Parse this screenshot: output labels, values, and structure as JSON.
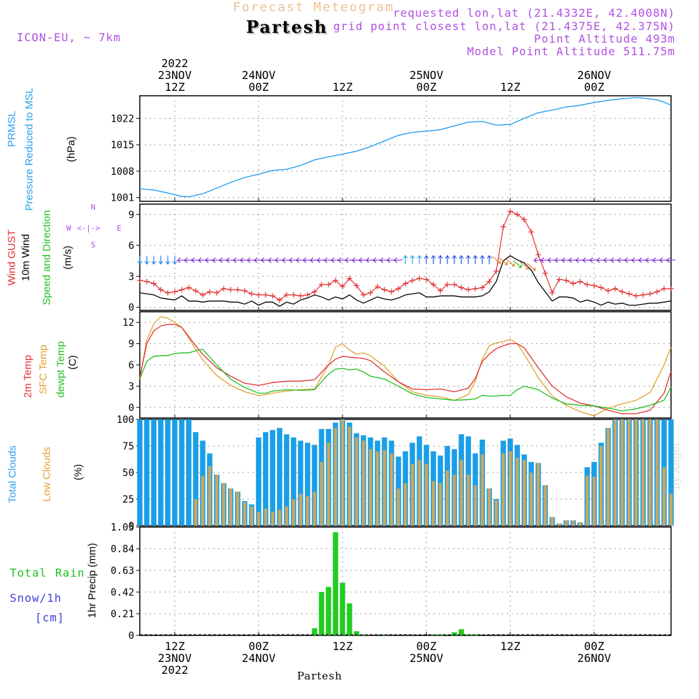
{
  "header": {
    "title": "Forecast Meteogram",
    "station": "Partesh",
    "model": "ICON-EU, ~ 7km",
    "requested": "requested lon,lat (21.4332E, 42.4008N)",
    "closest": "grid point closest lon,lat (21.4375E, 42.375N)",
    "altitude": "Point Altitude 493m",
    "model_altitude": "Model Point Altitude 511.75m",
    "watermark": "by Angel",
    "footer_station": "Partesh",
    "colors": {
      "title": "#f0c090",
      "purple": "#b050e0",
      "blue": "#2aa0f0",
      "red": "#e03030",
      "orange": "#e0a030",
      "green": "#20c020",
      "black": "#000000"
    }
  },
  "time_axis": {
    "top_ticks": [
      {
        "t": 6,
        "lines": [
          "2022",
          "23NOV",
          "12Z"
        ]
      },
      {
        "t": 18,
        "lines": [
          "24NOV",
          "00Z"
        ]
      },
      {
        "t": 30,
        "lines": [
          "12Z"
        ]
      },
      {
        "t": 42,
        "lines": [
          "25NOV",
          "00Z"
        ]
      },
      {
        "t": 54,
        "lines": [
          "12Z"
        ]
      },
      {
        "t": 66,
        "lines": [
          "26NOV",
          "00Z"
        ]
      }
    ],
    "bottom_ticks": [
      {
        "t": 6,
        "lines": [
          "12Z",
          "23NOV",
          "2022"
        ]
      },
      {
        "t": 18,
        "lines": [
          "00Z",
          "24NOV"
        ]
      },
      {
        "t": 30,
        "lines": [
          "12Z"
        ]
      },
      {
        "t": 42,
        "lines": [
          "00Z",
          "25NOV"
        ]
      },
      {
        "t": 54,
        "lines": [
          "12Z"
        ]
      },
      {
        "t": 66,
        "lines": [
          "00Z",
          "26NOV"
        ]
      }
    ],
    "t_start": 1,
    "t_end": 77,
    "unit": "hours after 2022-11-23 06Z"
  },
  "labels": {
    "pressure": [
      "PRMSL",
      "Pressure Reduced to MSL",
      "(hPa)"
    ],
    "wind": [
      "Wind GUST",
      "10m Wind",
      "Speed and Direction",
      "(m/s)"
    ],
    "compass": {
      "n": "N",
      "s": "S",
      "w": "W",
      "e": "E"
    },
    "temp": [
      "2m Temp",
      "SFC Temp",
      "dewpt Temp",
      "(C)"
    ],
    "clouds": [
      "Total Clouds",
      "Low Clouds",
      "(%)"
    ],
    "precip": [
      "Total",
      "Rain",
      "Snow/1h",
      "[cm]",
      "1hr Precip (mm)"
    ]
  },
  "chart_data": [
    {
      "type": "line",
      "name": "pressure",
      "ylabel": "(hPa)",
      "ylim": [
        1000,
        1028
      ],
      "yticks": [
        1001,
        1008,
        1015,
        1022
      ],
      "x": [
        1,
        3,
        5,
        7,
        8,
        10,
        12,
        14,
        16,
        18,
        20,
        22,
        24,
        26,
        28,
        30,
        32,
        34,
        36,
        38,
        40,
        42,
        44,
        46,
        48,
        50,
        52,
        54,
        56,
        58,
        60,
        62,
        64,
        66,
        68,
        70,
        72,
        73,
        75,
        76,
        77
      ],
      "series": [
        {
          "values": [
            1003.3,
            1003,
            1002.2,
            1001.3,
            1001.2,
            1002,
            1003.5,
            1005,
            1006.3,
            1007.2,
            1008.2,
            1008.5,
            1009.5,
            1011,
            1011.8,
            1012.5,
            1013.3,
            1014.5,
            1016,
            1017.5,
            1018.3,
            1018.6,
            1019,
            1020,
            1021,
            1021.2,
            1020.2,
            1020.4,
            1022,
            1023.5,
            1024.2,
            1025,
            1025.5,
            1026.2,
            1026.8,
            1027.2,
            1027.5,
            1027.4,
            1026.9,
            1026.3,
            1025.5
          ]
        }
      ],
      "grid": true
    },
    {
      "type": "line",
      "name": "wind",
      "ylabel": "(m/s)",
      "ylim": [
        -0.3,
        10
      ],
      "yticks": [
        0,
        3,
        6,
        9
      ],
      "x": [
        1,
        2,
        3,
        4,
        5,
        6,
        7,
        8,
        9,
        10,
        11,
        12,
        13,
        14,
        15,
        16,
        17,
        18,
        19,
        20,
        21,
        22,
        23,
        24,
        25,
        26,
        27,
        28,
        29,
        30,
        31,
        32,
        33,
        34,
        35,
        36,
        37,
        38,
        39,
        40,
        41,
        42,
        43,
        44,
        45,
        46,
        47,
        48,
        49,
        50,
        51,
        52,
        53,
        54,
        55,
        56,
        57,
        58,
        59,
        60,
        61,
        62,
        63,
        64,
        65,
        66,
        67,
        68,
        69,
        70,
        71,
        72,
        73,
        74,
        75,
        76,
        77
      ],
      "series": [
        {
          "name": "Wind GUST",
          "values": [
            2.6,
            2.5,
            2.3,
            1.7,
            1.4,
            1.5,
            1.7,
            1.9,
            1.6,
            1.2,
            1.5,
            1.4,
            1.8,
            1.7,
            1.7,
            1.6,
            1.3,
            1.2,
            1.2,
            1.1,
            0.7,
            1.2,
            1.2,
            1.1,
            1.2,
            1.5,
            2.2,
            2.2,
            2.6,
            2.0,
            2.8,
            2.1,
            1.2,
            1.4,
            2.0,
            1.7,
            1.5,
            1.8,
            2.3,
            2.6,
            2.8,
            2.7,
            2.2,
            1.6,
            2.2,
            2.2,
            1.9,
            1.7,
            1.8,
            1.9,
            2.5,
            3.5,
            7.8,
            9.3,
            9.0,
            8.5,
            7.3,
            5.1,
            3.3,
            1.4,
            2.7,
            2.6,
            2.3,
            2.5,
            2.2,
            2.1,
            1.9,
            1.6,
            1.8,
            1.5,
            1.3,
            1.1,
            1.2,
            1.3,
            1.5,
            1.8,
            1.8
          ]
        },
        {
          "name": "10m Wind",
          "values": [
            1.4,
            1.3,
            1.2,
            0.9,
            0.8,
            0.7,
            1.1,
            0.6,
            0.6,
            0.5,
            0.6,
            0.6,
            0.6,
            0.5,
            0.5,
            0.3,
            0.6,
            0.2,
            0.5,
            0.5,
            0.1,
            0.5,
            0.3,
            0.7,
            0.9,
            1.2,
            1.0,
            0.7,
            1.0,
            0.8,
            1.2,
            0.7,
            0.4,
            0.7,
            1.0,
            0.8,
            0.7,
            0.9,
            1.2,
            1.3,
            1.4,
            1.0,
            1.0,
            1.1,
            1.1,
            1.1,
            1.0,
            1.0,
            1.0,
            1.1,
            1.5,
            2.5,
            4.5,
            5.0,
            4.6,
            4.3,
            3.6,
            2.4,
            1.5,
            0.6,
            1.0,
            1.0,
            0.9,
            0.5,
            0.7,
            0.5,
            0.2,
            0.5,
            0.3,
            0.4,
            0.2,
            0.2,
            0.3,
            0.4,
            0.4,
            0.5,
            0.6
          ]
        }
      ],
      "arrows": {
        "y": 4.6,
        "color_green": "#20c020",
        "note": "wind direction barbs, mostly blowing from the east"
      },
      "grid": true
    },
    {
      "type": "line",
      "name": "temperature",
      "ylabel": "(C)",
      "ylim": [
        -1.5,
        13.5
      ],
      "yticks": [
        0,
        3,
        6,
        9,
        12
      ],
      "x": [
        1,
        2,
        3,
        4,
        5,
        6,
        7,
        8,
        9,
        10,
        12,
        14,
        16,
        18,
        19,
        20,
        22,
        24,
        26,
        28,
        29,
        30,
        31,
        32,
        33,
        34,
        36,
        38,
        40,
        42,
        44,
        46,
        48,
        49,
        50,
        51,
        52,
        53,
        54,
        55,
        56,
        58,
        60,
        62,
        64,
        66,
        68,
        70,
        72,
        74,
        76,
        77
      ],
      "series": [
        {
          "name": "2m Temp",
          "values": [
            4.2,
            9.0,
            10.8,
            11.5,
            11.7,
            11.7,
            11.3,
            10.0,
            8.7,
            7.5,
            5.6,
            4.4,
            3.4,
            3.1,
            3.3,
            3.5,
            3.7,
            3.7,
            3.9,
            6.0,
            6.8,
            7.2,
            7.1,
            7.0,
            6.9,
            6.6,
            5.0,
            3.6,
            2.6,
            2.5,
            2.6,
            2.2,
            2.7,
            4.1,
            6.5,
            7.5,
            8.3,
            8.7,
            9.0,
            9.0,
            8.4,
            5.6,
            3.0,
            1.5,
            0.6,
            0.2,
            -0.4,
            -0.9,
            -0.9,
            -0.4,
            2.0,
            5.1
          ]
        },
        {
          "name": "SFC Temp",
          "values": [
            4.0,
            9.5,
            11.8,
            12.8,
            12.6,
            12.0,
            11.3,
            9.8,
            8.2,
            6.7,
            4.5,
            3.1,
            2.2,
            1.7,
            1.8,
            2.0,
            2.3,
            2.5,
            2.6,
            6.0,
            8.5,
            9.0,
            8.1,
            7.5,
            7.7,
            7.3,
            5.8,
            3.6,
            2.2,
            1.7,
            1.5,
            1.0,
            1.8,
            3.7,
            6.8,
            8.7,
            9.1,
            9.3,
            9.6,
            9.0,
            7.5,
            4.2,
            1.6,
            0.3,
            -0.6,
            -1.2,
            -0.1,
            0.5,
            1.0,
            2.1,
            6.0,
            8.5
          ]
        },
        {
          "name": "dewpt Temp",
          "values": [
            4.0,
            6.5,
            7.2,
            7.3,
            7.3,
            7.6,
            7.7,
            7.7,
            8.0,
            8.2,
            6.0,
            4.0,
            2.8,
            2.0,
            2.0,
            2.3,
            2.5,
            2.4,
            2.5,
            4.7,
            5.4,
            5.5,
            5.3,
            5.4,
            5.0,
            4.4,
            4.0,
            3.0,
            1.9,
            1.4,
            1.2,
            1.0,
            1.1,
            1.2,
            1.7,
            1.6,
            1.6,
            1.7,
            1.7,
            2.5,
            3.0,
            2.5,
            1.3,
            0.5,
            0.3,
            0.2,
            -0.1,
            -0.5,
            -0.2,
            0.3,
            1.0,
            2.9
          ]
        }
      ],
      "grid": true
    },
    {
      "type": "bar",
      "name": "clouds",
      "ylabel": "(%)",
      "ylim": [
        0,
        100
      ],
      "yticks": [
        0,
        25,
        50,
        75,
        100
      ],
      "x": [
        1,
        2,
        3,
        4,
        5,
        6,
        7,
        8,
        9,
        10,
        11,
        12,
        13,
        14,
        15,
        16,
        17,
        18,
        19,
        20,
        21,
        22,
        23,
        24,
        25,
        26,
        27,
        28,
        29,
        30,
        31,
        32,
        33,
        34,
        35,
        36,
        37,
        38,
        39,
        40,
        41,
        42,
        43,
        44,
        45,
        46,
        47,
        48,
        49,
        50,
        51,
        52,
        53,
        54,
        55,
        56,
        57,
        58,
        59,
        60,
        61,
        62,
        63,
        64,
        65,
        66,
        67,
        68,
        69,
        70,
        71,
        72,
        73,
        74,
        75,
        76,
        77
      ],
      "series": [
        {
          "name": "Total Clouds",
          "values": [
            100,
            100,
            100,
            100,
            100,
            100,
            100,
            100,
            88,
            80,
            68,
            48,
            40,
            35,
            32,
            23,
            20,
            83,
            88,
            90,
            92,
            86,
            83,
            80,
            78,
            76,
            91,
            91,
            97,
            100,
            97,
            87,
            85,
            83,
            80,
            83,
            80,
            65,
            70,
            78,
            84,
            76,
            70,
            66,
            75,
            72,
            86,
            84,
            68,
            81,
            35,
            25,
            80,
            82,
            76,
            67,
            60,
            59,
            38,
            8,
            2,
            5,
            5,
            3,
            55,
            60,
            78,
            92,
            100,
            100,
            100,
            100,
            100,
            100,
            100,
            100,
            100
          ]
        },
        {
          "name": "Low Clouds",
          "values": [
            0,
            0,
            0,
            0,
            0,
            0,
            0,
            0,
            25,
            47,
            56,
            48,
            40,
            35,
            32,
            22,
            18,
            13,
            16,
            13,
            15,
            18,
            25,
            30,
            28,
            32,
            60,
            78,
            92,
            100,
            93,
            83,
            80,
            72,
            70,
            71,
            68,
            35,
            40,
            58,
            62,
            58,
            42,
            40,
            52,
            48,
            62,
            48,
            38,
            67,
            35,
            24,
            68,
            70,
            64,
            62,
            50,
            59,
            38,
            8,
            2,
            5,
            5,
            3,
            47,
            46,
            75,
            92,
            100,
            100,
            100,
            100,
            100,
            100,
            100,
            55,
            30
          ]
        }
      ],
      "grid": true
    },
    {
      "type": "bar",
      "name": "precipitation",
      "ylabel": "1hr Precip (mm)",
      "ylim": [
        0,
        1.05
      ],
      "yticks": [
        0,
        0.21,
        0.42,
        0.63,
        0.84,
        1.05
      ],
      "x": [
        26,
        27,
        28,
        29,
        30,
        31,
        32,
        33,
        34,
        35,
        36,
        38,
        39,
        40,
        41,
        42,
        43,
        44,
        45,
        46,
        47,
        48,
        49
      ],
      "series": [
        {
          "name": "Total Rain",
          "values": [
            0.07,
            0.42,
            0.47,
            1.0,
            0.51,
            0.31,
            0.04,
            0.01,
            0,
            0,
            0.01,
            0,
            0,
            0,
            0,
            0,
            0.01,
            0.01,
            0,
            0.03,
            0.06,
            0.01,
            0.01
          ]
        }
      ],
      "grid": true
    }
  ]
}
